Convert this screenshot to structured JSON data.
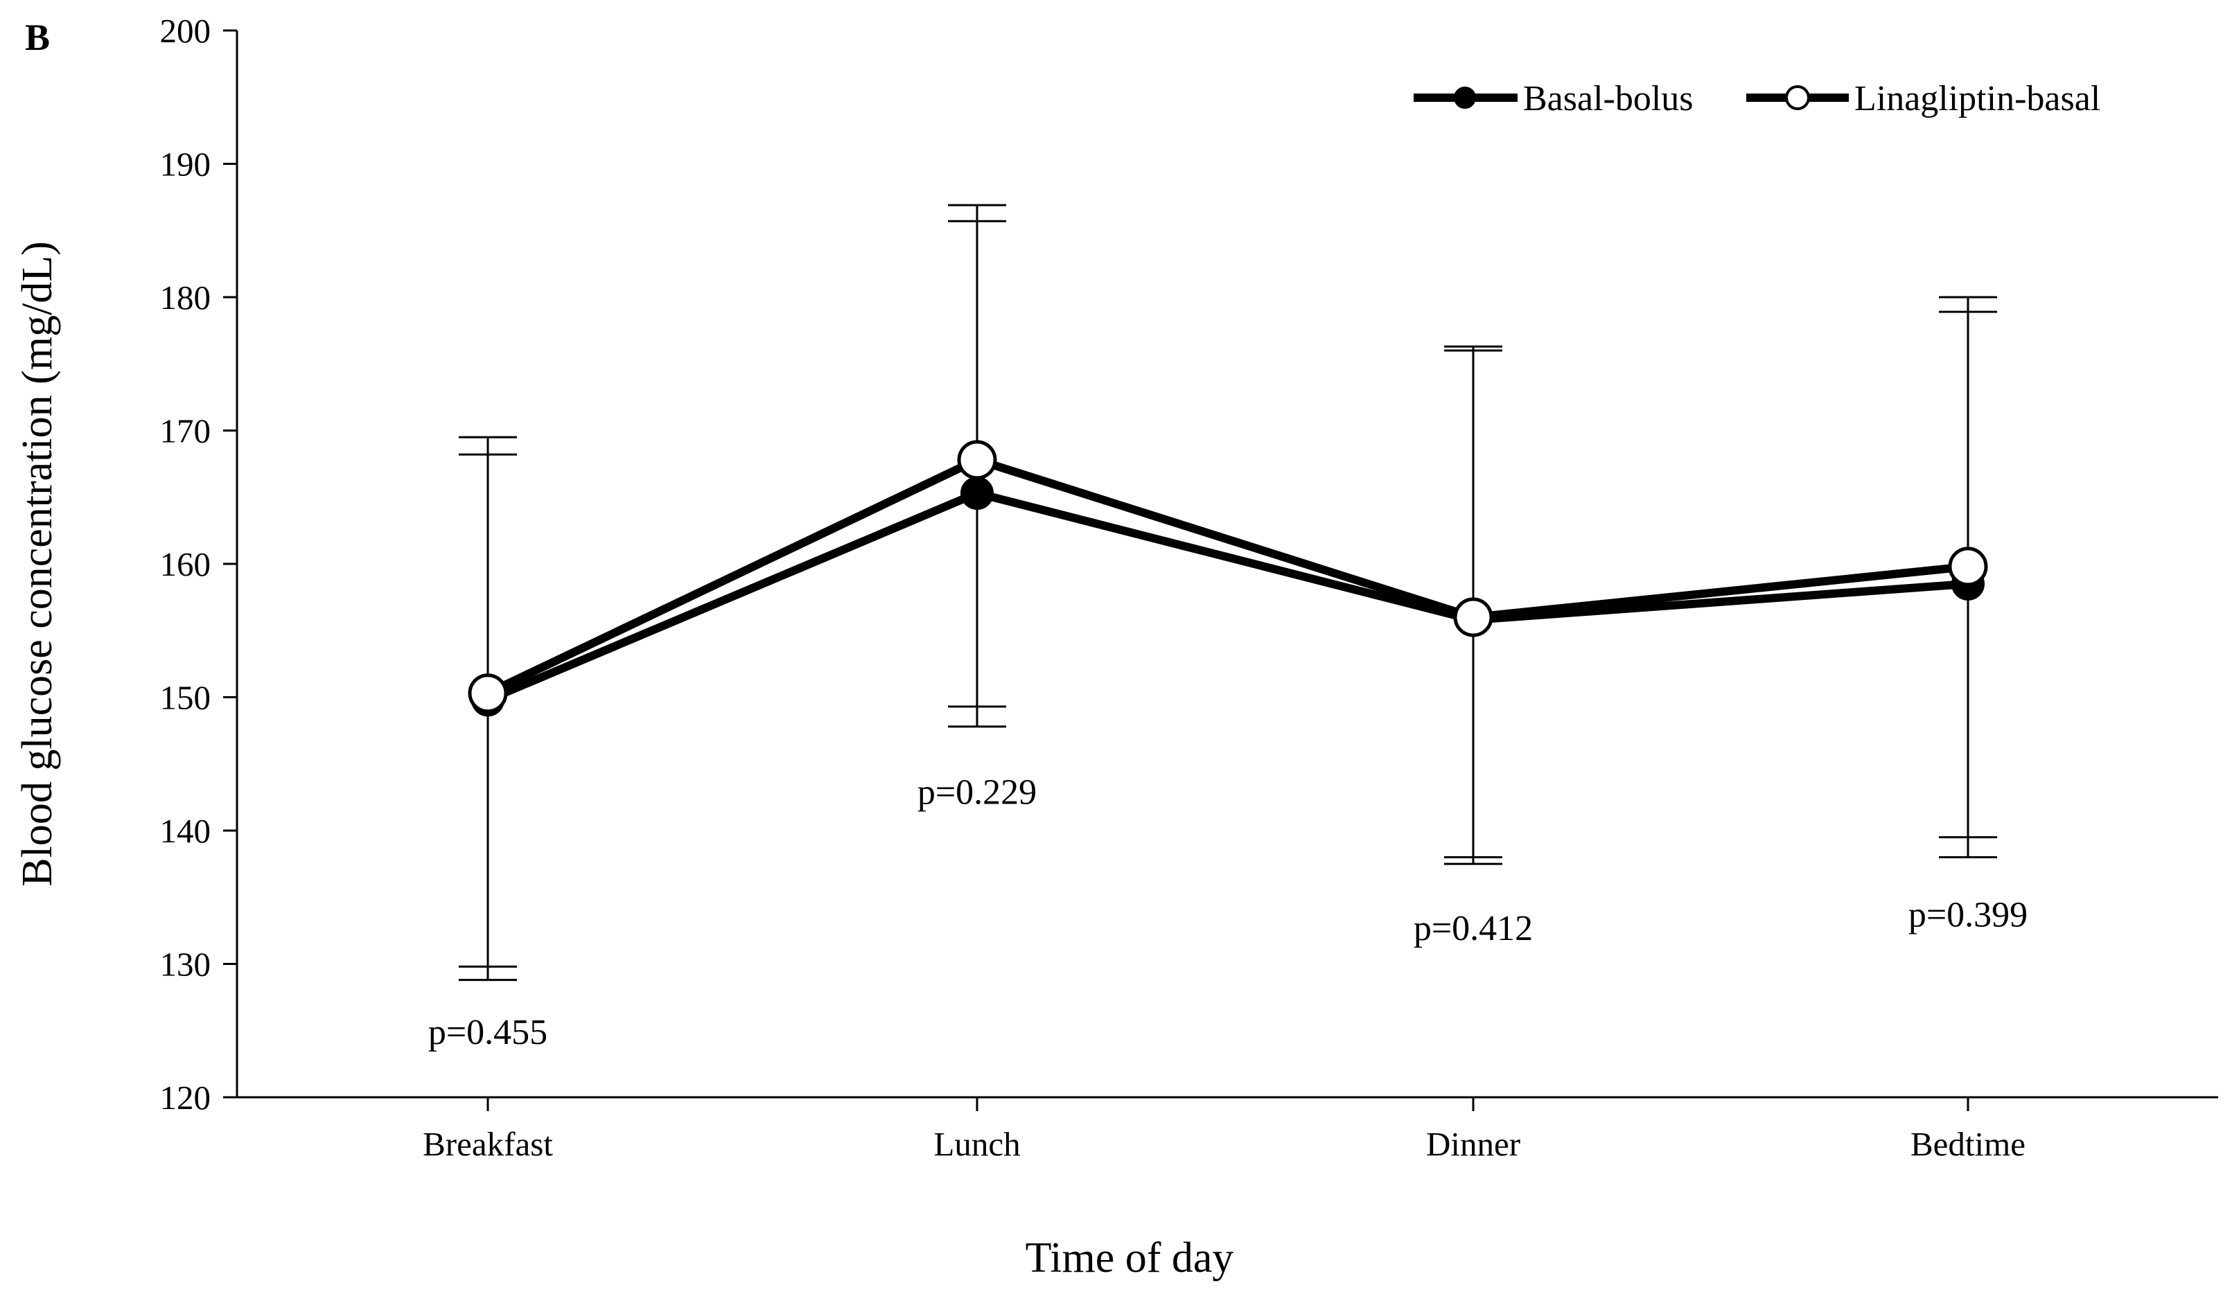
{
  "chart_data": {
    "type": "line",
    "panel_label": "B",
    "title": "",
    "xlabel": "Time of day",
    "ylabel": "Blood glucose concentration (mg/dL)",
    "ylim": [
      120,
      200
    ],
    "yticks": [
      120,
      130,
      140,
      150,
      160,
      170,
      180,
      190,
      200
    ],
    "ytick_labels": [
      "120",
      "130",
      "140",
      "150",
      "160",
      "170",
      "180",
      "190",
      "200"
    ],
    "grid": false,
    "legend_position": "top-right",
    "categories": [
      "Breakfast",
      "Lunch",
      "Dinner",
      "Bedtime"
    ],
    "series": [
      {
        "name": "Basal-bolus",
        "marker": "filled-circle",
        "color": "#000000",
        "values": [
          149.8,
          165.3,
          155.8,
          158.5
        ],
        "error_low": [
          128.8,
          147.8,
          137.5,
          138.0
        ],
        "error_high": [
          168.2,
          185.7,
          176.0,
          178.9
        ]
      },
      {
        "name": "Linagliptin-basal",
        "marker": "open-circle",
        "color": "#000000",
        "values": [
          150.3,
          167.8,
          156.0,
          159.8
        ],
        "error_low": [
          129.8,
          149.3,
          138.0,
          139.5
        ],
        "error_high": [
          169.5,
          186.9,
          176.3,
          180.0
        ]
      }
    ],
    "annotations": [
      {
        "category": "Breakfast",
        "text": "p=0.455",
        "y": 124.0
      },
      {
        "category": "Lunch",
        "text": "p=0.229",
        "y": 142.0
      },
      {
        "category": "Dinner",
        "text": "p=0.412",
        "y": 131.8
      },
      {
        "category": "Bedtime",
        "text": "p=0.399",
        "y": 132.8
      }
    ]
  }
}
